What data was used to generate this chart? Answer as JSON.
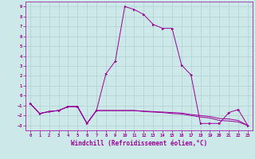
{
  "xlabel": "Windchill (Refroidissement éolien,°C)",
  "background_color": "#cde8e8",
  "grid_color": "#b0d0d0",
  "line_color": "#990099",
  "xlim": [
    -0.5,
    23.5
  ],
  "ylim": [
    -3.5,
    9.5
  ],
  "xticks": [
    0,
    1,
    2,
    3,
    4,
    5,
    6,
    7,
    8,
    9,
    10,
    11,
    12,
    13,
    14,
    15,
    16,
    17,
    18,
    19,
    20,
    21,
    22,
    23
  ],
  "yticks": [
    -3,
    -2,
    -1,
    0,
    1,
    2,
    3,
    4,
    5,
    6,
    7,
    8,
    9
  ],
  "hours": [
    0,
    1,
    2,
    3,
    4,
    5,
    6,
    7,
    8,
    9,
    10,
    11,
    12,
    13,
    14,
    15,
    16,
    17,
    18,
    19,
    20,
    21,
    22,
    23
  ],
  "series1": [
    -0.8,
    -1.8,
    -1.6,
    -1.5,
    -1.1,
    -1.1,
    -2.8,
    -1.5,
    2.2,
    3.5,
    9.0,
    8.7,
    8.2,
    7.2,
    6.8,
    6.8,
    3.1,
    2.1,
    -2.8,
    -2.8,
    -2.8,
    -1.7,
    -1.4,
    -3.0
  ],
  "series2": [
    -0.8,
    -1.8,
    -1.6,
    -1.5,
    -1.1,
    -1.1,
    -2.8,
    -1.5,
    -1.5,
    -1.5,
    -1.5,
    -1.5,
    -1.55,
    -1.6,
    -1.65,
    -1.7,
    -1.75,
    -1.9,
    -2.0,
    -2.1,
    -2.3,
    -2.35,
    -2.5,
    -3.0
  ],
  "series3": [
    -0.8,
    -1.8,
    -1.6,
    -1.5,
    -1.1,
    -1.1,
    -2.8,
    -1.5,
    -1.5,
    -1.5,
    -1.5,
    -1.5,
    -1.6,
    -1.65,
    -1.7,
    -1.8,
    -1.85,
    -2.0,
    -2.15,
    -2.25,
    -2.5,
    -2.55,
    -2.65,
    -3.0
  ]
}
